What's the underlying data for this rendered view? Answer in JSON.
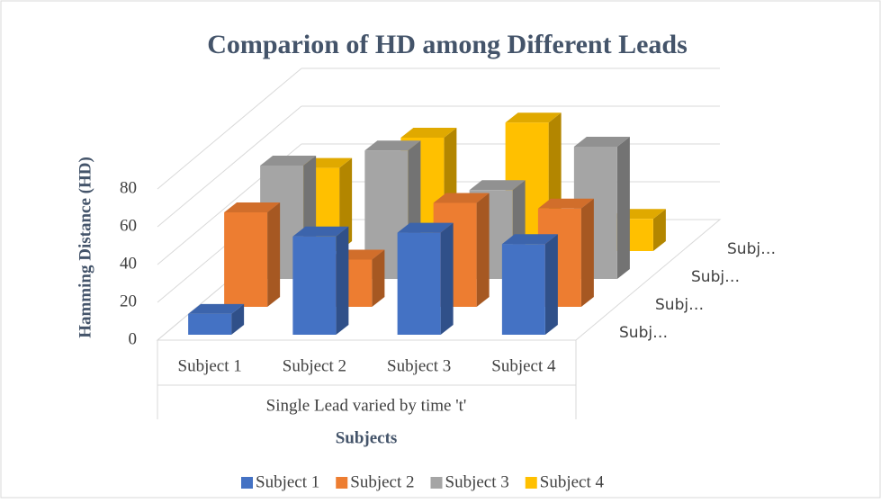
{
  "chart_data": {
    "type": "bar3d",
    "title": "Comparion of HD among Different Leads",
    "y_label": "Hamming Distance (HD)",
    "x_label": "Subjects",
    "group_label": "Single Lead varied by time 't'",
    "categories": [
      "Subject 1",
      "Subject 2",
      "Subject 3",
      "Subject 4"
    ],
    "depth_labels": [
      "Subj…",
      "Subj…",
      "Subj…",
      "Subj…"
    ],
    "series": [
      {
        "name": "Subject 1",
        "color": "#4472c4",
        "values": [
          11,
          52,
          54,
          48
        ]
      },
      {
        "name": "Subject 2",
        "color": "#ed7d31",
        "values": [
          50,
          25,
          55,
          52
        ]
      },
      {
        "name": "Subject 3",
        "color": "#a5a5a5",
        "values": [
          60,
          68,
          47,
          70
        ]
      },
      {
        "name": "Subject 4",
        "color": "#ffc000",
        "values": [
          44,
          60,
          68,
          17
        ]
      }
    ],
    "ylim": [
      0,
      80
    ],
    "yticks": [
      0,
      20,
      40,
      60,
      80
    ],
    "grid": true,
    "legend": "bottom"
  }
}
